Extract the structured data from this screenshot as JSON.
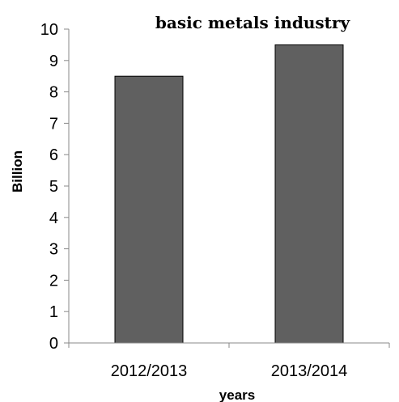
{
  "chart_data": {
    "type": "bar",
    "title": "basic metals industry",
    "xlabel": "years",
    "ylabel": "Billion",
    "categories": [
      "2012/2013",
      "2013/2014"
    ],
    "values": [
      8.5,
      9.5
    ],
    "ylim": [
      0,
      10
    ],
    "yticks": [
      0,
      1,
      2,
      3,
      4,
      5,
      6,
      7,
      8,
      9,
      10
    ],
    "grid": false,
    "legend": "none",
    "bar_color": "#606060",
    "bar_edge_color": "#000000"
  }
}
